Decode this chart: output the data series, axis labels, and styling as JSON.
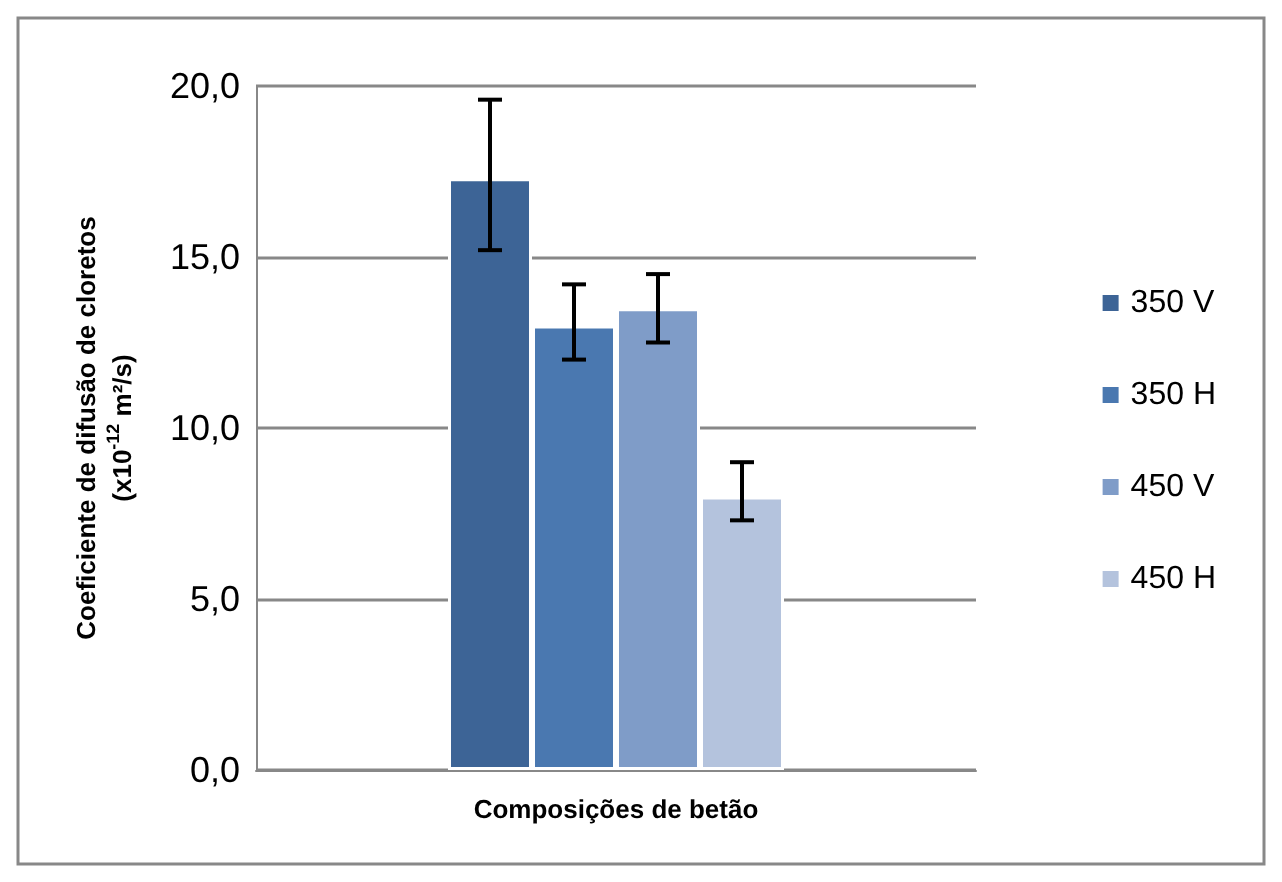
{
  "chart_data": {
    "type": "bar",
    "xlabel": "Composições de betão",
    "ylabel": "Coeficiente de difusão de cloretos\n(x10$^{-12}$ m²/s)",
    "categories": [
      null
    ],
    "series": [
      {
        "name": "350 V",
        "color": "#3d6496",
        "values": [
          17.3
        ],
        "errors": [
          [
            15.2,
            19.6
          ]
        ]
      },
      {
        "name": "350 H",
        "color": "#4a78b0",
        "values": [
          13.0
        ],
        "errors": [
          [
            12.0,
            14.2
          ]
        ]
      },
      {
        "name": "450 V",
        "color": "#7f9cc8",
        "values": [
          13.5
        ],
        "errors": [
          [
            12.5,
            14.5
          ]
        ]
      },
      {
        "name": "450 H",
        "color": "#b4c3dd",
        "values": [
          8.0
        ],
        "errors": [
          [
            7.3,
            9.0
          ]
        ]
      }
    ],
    "ylim": [
      0,
      20
    ],
    "yticks": [
      {
        "value": 0,
        "label": "0,0"
      },
      {
        "value": 5,
        "label": "5,0"
      },
      {
        "value": 10,
        "label": "10,0"
      },
      {
        "value": 15,
        "label": "15,0"
      },
      {
        "value": 20,
        "label": "20,0"
      }
    ],
    "grid": "y",
    "legend": "right"
  }
}
